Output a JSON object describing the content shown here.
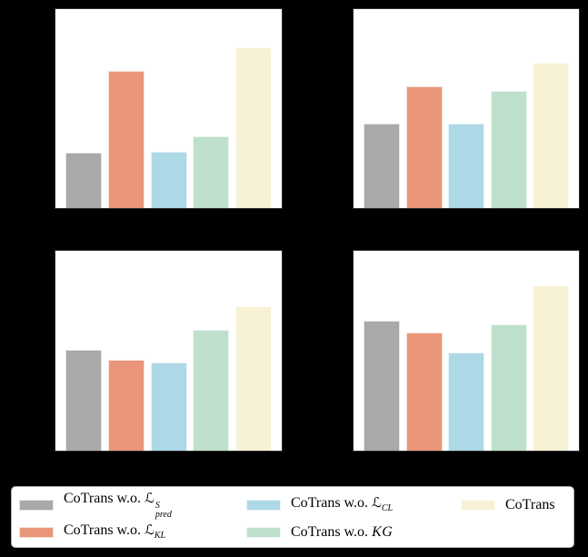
{
  "figure": {
    "background_color": "#000000",
    "plot_background_color": "#ffffff",
    "note": "2x2 grid of bar charts; axis tick labels and subplot titles are not visible against the black background",
    "axis_labels_visible": false
  },
  "palette": {
    "gray": "#a9a9a9",
    "salmon": "#e9967a",
    "light_blue": "#add8e6",
    "light_green": "#bfe0cc",
    "cream_yellow": "#f7f1d5",
    "legend_border": "#b0b0b0",
    "spine": "#2b2b2b"
  },
  "chart_data": [
    {
      "type": "bar",
      "panel": "top-left",
      "categories": [
        "CoTrans w.o. L^S_pred",
        "CoTrans w.o. L_KL",
        "CoTrans w.o. L_CL",
        "CoTrans w.o. KG",
        "CoTrans"
      ],
      "values": [
        27.7,
        69.1,
        28.5,
        36.3,
        80.7
      ],
      "value_units": "percent of plot height (axis scale not visible)",
      "colors": [
        "#a9a9a9",
        "#e9967a",
        "#add8e6",
        "#bfe0cc",
        "#f7f1d5"
      ],
      "title": "",
      "xlabel": "",
      "ylabel": "",
      "grid": false
    },
    {
      "type": "bar",
      "panel": "top-right",
      "categories": [
        "CoTrans w.o. L^S_pred",
        "CoTrans w.o. L_KL",
        "CoTrans w.o. L_CL",
        "CoTrans w.o. KG",
        "CoTrans"
      ],
      "values": [
        42.5,
        61.2,
        42.4,
        58.8,
        72.9
      ],
      "value_units": "percent of plot height (axis scale not visible)",
      "colors": [
        "#a9a9a9",
        "#e9967a",
        "#add8e6",
        "#bfe0cc",
        "#f7f1d5"
      ],
      "title": "",
      "xlabel": "",
      "ylabel": "",
      "grid": false
    },
    {
      "type": "bar",
      "panel": "bottom-left",
      "categories": [
        "CoTrans w.o. L^S_pred",
        "CoTrans w.o. L_KL",
        "CoTrans w.o. L_CL",
        "CoTrans w.o. KG",
        "CoTrans"
      ],
      "values": [
        50.4,
        45.6,
        44.2,
        60.4,
        72.1
      ],
      "value_units": "percent of plot height (axis scale not visible)",
      "colors": [
        "#a9a9a9",
        "#e9967a",
        "#add8e6",
        "#bfe0cc",
        "#f7f1d5"
      ],
      "title": "",
      "xlabel": "",
      "ylabel": "",
      "grid": false
    },
    {
      "type": "bar",
      "panel": "bottom-right",
      "categories": [
        "CoTrans w.o. L^S_pred",
        "CoTrans w.o. L_KL",
        "CoTrans w.o. L_CL",
        "CoTrans w.o. KG",
        "CoTrans"
      ],
      "values": [
        65.2,
        59.0,
        49.2,
        63.1,
        82.6
      ],
      "value_units": "percent of plot height (axis scale not visible)",
      "colors": [
        "#a9a9a9",
        "#e9967a",
        "#add8e6",
        "#bfe0cc",
        "#f7f1d5"
      ],
      "title": "",
      "xlabel": "",
      "ylabel": "",
      "grid": false
    }
  ],
  "legend": {
    "position": "bottom",
    "entries": [
      {
        "plain_label": "CoTrans w.o. L^S_pred",
        "prefix": "CoTrans w.o. ",
        "symbol": "ℒ",
        "symbol_font": "script",
        "sup": "S",
        "sub": "pred",
        "color": "#a9a9a9",
        "column": 0,
        "row": 0
      },
      {
        "plain_label": "CoTrans w.o. L_KL",
        "prefix": "CoTrans w.o. ",
        "symbol": "ℒ",
        "symbol_font": "script",
        "sup": "",
        "sub": "KL",
        "color": "#e9967a",
        "column": 0,
        "row": 1
      },
      {
        "plain_label": "CoTrans w.o. L_CL",
        "prefix": "CoTrans w.o. ",
        "symbol": "ℒ",
        "symbol_font": "script",
        "sup": "",
        "sub": "CL",
        "color": "#add8e6",
        "column": 1,
        "row": 0
      },
      {
        "plain_label": "CoTrans w.o. KG",
        "prefix": "CoTrans w.o. ",
        "symbol": "KG",
        "symbol_font": "italic",
        "sup": "",
        "sub": "",
        "color": "#bfe0cc",
        "column": 1,
        "row": 1
      },
      {
        "plain_label": "CoTrans",
        "prefix": "CoTrans",
        "symbol": "",
        "symbol_font": "",
        "sup": "",
        "sub": "",
        "color": "#f7f1d5",
        "column": 2,
        "row": 0
      }
    ]
  }
}
